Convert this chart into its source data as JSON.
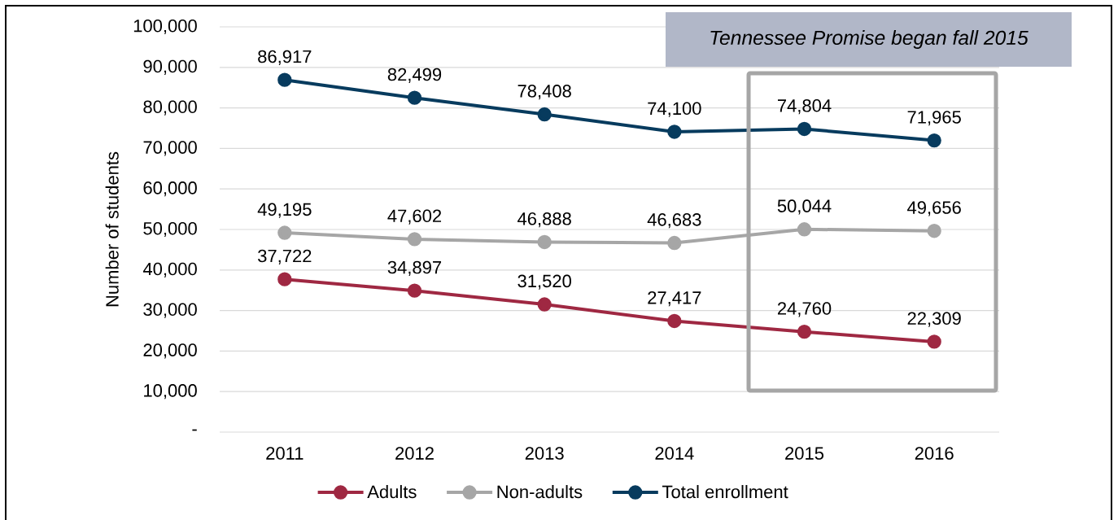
{
  "chart_data": {
    "type": "line",
    "ylabel": "Number of students",
    "annotations": [
      "Tennessee Promise began fall 2015"
    ],
    "categories": [
      "2011",
      "2012",
      "2013",
      "2014",
      "2015",
      "2016"
    ],
    "ylim": [
      0,
      100000
    ],
    "yticks": [
      {
        "value": 0,
        "label": "-"
      },
      {
        "value": 10000,
        "label": "10,000"
      },
      {
        "value": 20000,
        "label": "20,000"
      },
      {
        "value": 30000,
        "label": "30,000"
      },
      {
        "value": 40000,
        "label": "40,000"
      },
      {
        "value": 50000,
        "label": "50,000"
      },
      {
        "value": 60000,
        "label": "60,000"
      },
      {
        "value": 70000,
        "label": "70,000"
      },
      {
        "value": 80000,
        "label": "80,000"
      },
      {
        "value": 90000,
        "label": "90,000"
      },
      {
        "value": 100000,
        "label": "100,000"
      }
    ],
    "grid": "y",
    "legend": "bottom",
    "marker": "circle",
    "series": [
      {
        "name": "Adults",
        "color": "#9f2842",
        "values": [
          37722,
          34897,
          31520,
          27417,
          24760,
          22309
        ],
        "value_labels": [
          "37,722",
          "34,897",
          "31,520",
          "27,417",
          "24,760",
          "22,309"
        ]
      },
      {
        "name": "Non-adults",
        "color": "#a6a6a6",
        "values": [
          49195,
          47602,
          46888,
          46683,
          50044,
          49656
        ],
        "value_labels": [
          "49,195",
          "47,602",
          "46,888",
          "46,683",
          "50,044",
          "49,656"
        ]
      },
      {
        "name": "Total enrollment",
        "color": "#073b5e",
        "values": [
          86917,
          82499,
          78408,
          74100,
          74804,
          71965
        ],
        "value_labels": [
          "86,917",
          "82,499",
          "78,408",
          "74,100",
          "74,804",
          "71,965"
        ]
      }
    ]
  }
}
